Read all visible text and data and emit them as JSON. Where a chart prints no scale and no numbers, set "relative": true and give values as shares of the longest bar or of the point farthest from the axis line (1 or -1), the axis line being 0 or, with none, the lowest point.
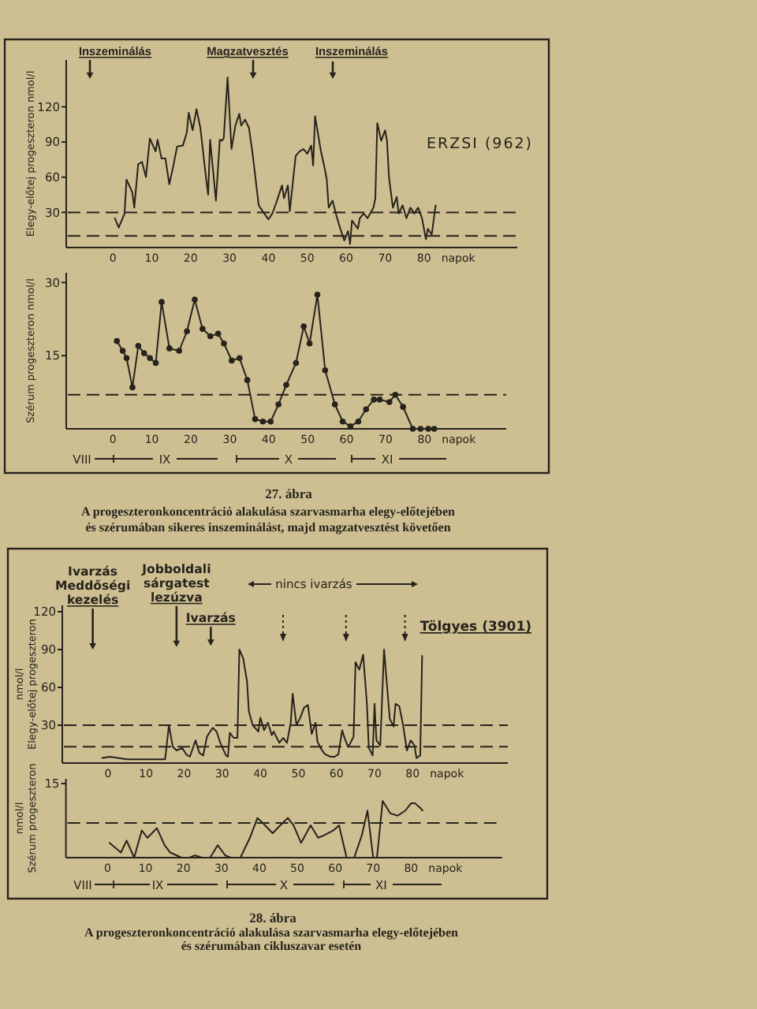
{
  "chart_data": [
    {
      "type": "line",
      "color": "#27231c",
      "xlabel": "napok",
      "ylabel": "Elegy-előtej progeszteron nmol/l",
      "xlim": [
        -12,
        104
      ],
      "xticks": [
        0,
        10,
        20,
        30,
        40,
        50,
        60,
        70,
        80
      ],
      "ylim": [
        0,
        160
      ],
      "yticks": [
        30,
        60,
        90,
        120
      ],
      "x": [
        0.5,
        1.5,
        3,
        3.5,
        5,
        5.5,
        6.5,
        7.5,
        8.5,
        9.5,
        11,
        11.5,
        12.5,
        13.5,
        14.5,
        15.5,
        16.5,
        18,
        19,
        19.5,
        20.5,
        21.5,
        22.5,
        24,
        24.5,
        25,
        26.5,
        27.5,
        28,
        28.5,
        29.5,
        30.5,
        31.5,
        32.5,
        33,
        34,
        35,
        36,
        37.5,
        38.5,
        40,
        41,
        42,
        43.5,
        44,
        45,
        45.5,
        47,
        48,
        49,
        50,
        51,
        51.5,
        52,
        53.5,
        54.5,
        55,
        55.5,
        56.5,
        57.5,
        58.5,
        59.5,
        60.5,
        61,
        61.5,
        63,
        63.5,
        64.5,
        65.5,
        67,
        67.5,
        68,
        69,
        70,
        70.5,
        71,
        72,
        73,
        73.5,
        74.5,
        75.5,
        76.5,
        77.5,
        78.5,
        79.5,
        80.5,
        81,
        82,
        83
      ],
      "values": [
        25,
        17,
        29,
        58,
        47,
        34,
        71,
        73,
        60,
        93,
        82,
        92,
        76,
        76,
        54,
        69,
        86,
        87,
        98,
        115,
        100,
        118,
        102,
        58,
        45,
        92,
        40,
        92,
        91,
        93,
        145,
        84,
        104,
        114,
        104,
        109,
        102,
        78,
        36,
        31,
        24,
        29,
        38,
        53,
        42,
        53,
        31,
        78,
        82,
        84,
        80,
        87,
        70,
        112,
        82,
        67,
        58,
        34,
        40,
        27,
        16,
        6,
        14,
        3,
        23,
        16,
        25,
        29,
        25,
        34,
        42,
        106,
        91,
        100,
        91,
        60,
        34,
        43,
        29,
        36,
        25,
        34,
        29,
        34,
        25,
        7,
        16,
        11,
        36
      ],
      "ref_lines": [
        {
          "axis": "y",
          "value": 30,
          "line_style": "dashed"
        },
        {
          "axis": "y",
          "value": 10,
          "line_style": "dashed"
        }
      ],
      "annotations": [
        "Inszeminálás",
        "Magzatvesztés",
        "Inszeminálás",
        "ERZSI (962)"
      ]
    },
    {
      "type": "line",
      "color": "#27231c",
      "marker": "circle",
      "xlabel": "napok",
      "ylabel": "Szérum progeszteron nmol/l",
      "xlim": [
        -12,
        101
      ],
      "xticks": [
        0,
        10,
        20,
        30,
        40,
        50,
        60,
        70,
        80
      ],
      "ylim": [
        0,
        32
      ],
      "yticks": [
        15,
        30
      ],
      "x": [
        1,
        2.5,
        3.5,
        5,
        6.5,
        8,
        9.5,
        11,
        12.5,
        14.5,
        17,
        19,
        21,
        23,
        25,
        27,
        28.5,
        30.5,
        32.5,
        34.5,
        36.5,
        38.5,
        40.5,
        42.5,
        44.5,
        47,
        49,
        50.5,
        52.5,
        54.5,
        57,
        59,
        61,
        63,
        65,
        67,
        68.5,
        71,
        72.5,
        74.5,
        77,
        79,
        81,
        82.5
      ],
      "values": [
        18,
        16,
        14.5,
        8.5,
        17,
        15.5,
        14.5,
        13.5,
        26,
        16.5,
        16,
        20,
        26.5,
        20.5,
        19,
        19.5,
        17.5,
        14,
        14.5,
        10,
        2,
        1.5,
        1.5,
        5,
        9,
        13.5,
        21,
        17.5,
        27.5,
        12,
        5,
        1.5,
        0.5,
        1.5,
        4,
        6,
        6,
        5.5,
        7,
        4.5,
        0,
        0,
        0,
        0
      ],
      "ref_lines": [
        {
          "axis": "y",
          "value": 7,
          "line_style": "dashed"
        }
      ],
      "annotations": [
        "VIII",
        "IX",
        "X",
        "XI",
        "27. ábra",
        "A progeszteronkoncentráció alakulása szarvasmarha elegy-előtejében\nés szérumában sikeres inszeminálást, majd magzatvesztést követően"
      ]
    },
    {
      "type": "line",
      "color": "#27231c",
      "xlabel": "napok",
      "ylabel": "nmol/l\nElegy-előtej progeszteron",
      "xlim": [
        -12,
        105
      ],
      "xticks": [
        0,
        10,
        20,
        30,
        40,
        50,
        60,
        70,
        80
      ],
      "ylim": [
        0,
        125
      ],
      "yticks": [
        30,
        60,
        90,
        120
      ],
      "x": [
        -1.5,
        0.5,
        5,
        10.5,
        15,
        16,
        17,
        18,
        19.5,
        20.5,
        21.5,
        23,
        24,
        25,
        26,
        27.5,
        28.5,
        29.5,
        31,
        31.5,
        32,
        33,
        34,
        34.5,
        35.5,
        36.5,
        37,
        38,
        39.5,
        40,
        41,
        42,
        43,
        43.5,
        45,
        46,
        47,
        48,
        48.5,
        49.5,
        50.5,
        51.5,
        52.5,
        53.5,
        54.5,
        55,
        56,
        57,
        58.5,
        59.5,
        60.5,
        61.5,
        62,
        63,
        63.5,
        64.5,
        65,
        66,
        67,
        68,
        68.5,
        69.5,
        70,
        70.5,
        71.5,
        72.5,
        74,
        75,
        75.5,
        76.5,
        77.5,
        78.5,
        79.5,
        80.5,
        81,
        82,
        82.5
      ],
      "values": [
        4,
        5,
        3,
        3,
        3,
        30,
        13,
        10,
        12,
        7,
        5,
        18,
        8,
        6,
        21,
        28,
        25,
        16,
        6,
        5,
        24,
        20,
        20,
        90,
        83,
        65,
        41,
        30,
        25,
        36,
        26,
        32,
        22,
        25,
        16,
        20,
        16,
        32,
        55,
        30,
        36,
        44,
        46,
        23,
        32,
        17,
        11,
        7,
        5,
        5,
        7,
        26,
        21,
        13,
        15,
        21,
        80,
        74,
        86,
        47,
        12,
        6,
        47,
        18,
        14,
        90,
        35,
        29,
        47,
        45,
        30,
        10,
        18,
        14,
        4,
        6,
        85
      ],
      "ref_lines": [
        {
          "axis": "y",
          "value": 30,
          "line_style": "dashed"
        },
        {
          "axis": "y",
          "value": 13,
          "line_style": "dashed"
        }
      ],
      "annotations": [
        {
          "text": "Ivarzás\nMeddőségi\nkezelés",
          "x": -4,
          "y": 90
        },
        {
          "text": "Jobboldali\nsárgatest\nlezúzva",
          "x": 18,
          "y": 92
        },
        {
          "text": "Ivarzás",
          "x": 27,
          "y": 93
        },
        "nincs ivarzás",
        "Tölgyes (3901)"
      ]
    },
    {
      "type": "line",
      "color": "#27231c",
      "relative": true,
      "xlabel": "napok",
      "ylabel": "nmol/l\nSzérum progeszteron",
      "xlim": [
        -11,
        104
      ],
      "xticks": [
        0,
        10,
        20,
        30,
        40,
        50,
        60,
        70,
        80
      ],
      "x": [
        0.5,
        3.5,
        5,
        7,
        9,
        10.5,
        13,
        15,
        16.5,
        19.5,
        21.5,
        23,
        25,
        27,
        29,
        31,
        32.5,
        35,
        37.5,
        39.5,
        41.5,
        43.5,
        45.5,
        47.5,
        49,
        51,
        53.5,
        55.5,
        57,
        59.5,
        61,
        63,
        65,
        67,
        68.5,
        70,
        71,
        72.5,
        74.5,
        76.5,
        78.5,
        80,
        81,
        82.5,
        83
      ],
      "values": [
        0.26,
        0.09,
        0.3,
        0,
        0.48,
        0.35,
        0.52,
        0.22,
        0.09,
        0,
        0,
        0.04,
        0,
        0,
        0.22,
        0.04,
        0,
        0,
        0.35,
        0.7,
        0.57,
        0.43,
        0.57,
        0.7,
        0.57,
        0.26,
        0.57,
        0.35,
        0.39,
        0.48,
        0.57,
        0,
        0,
        0.39,
        0.83,
        0,
        0,
        1,
        0.78,
        0.74,
        0.83,
        0.96,
        0.96,
        0.87,
        0.83
      ],
      "ref_lines": [
        {
          "axis": "y",
          "value": 0.61,
          "line_style": "dashed"
        }
      ],
      "annotations": [
        "15",
        "VIII",
        "IX",
        "X",
        "XI",
        "28. ábra",
        "A progeszteronkoncentráció alakulása szarvasmarha elegy-előtejében\nés szérumában cikluszavar esetén"
      ]
    }
  ]
}
